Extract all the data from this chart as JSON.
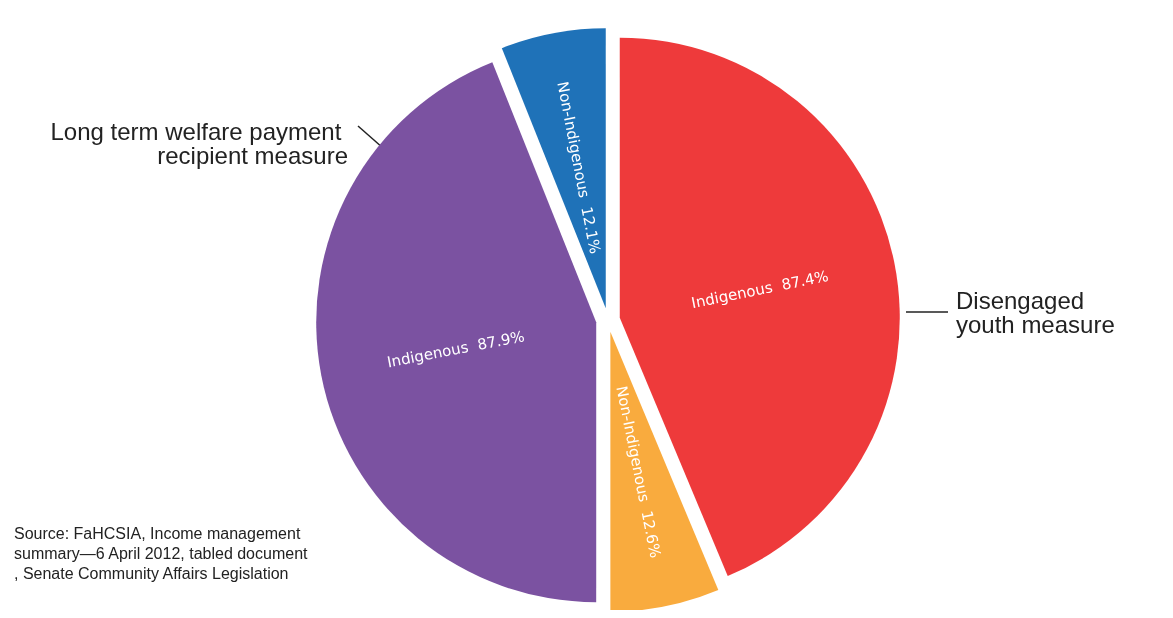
{
  "chart_data": {
    "type": "pie",
    "categories": [
      "Indigenous",
      "Non-Indigenous",
      "Indigenous",
      "Non-Indigenous"
    ],
    "values": [
      87.4,
      12.6,
      87.9,
      12.1
    ],
    "colors": [
      "#ee3a3b",
      "#f9ab3e",
      "#7b52a1",
      "#1f72b8"
    ],
    "value_labels": [
      "87.4%",
      "12.6%",
      "87.9%",
      "12.1%"
    ],
    "annotations": [
      "Disengaged youth measure",
      "Long term welfare payment recipient measure",
      "Source: FaHCSIA, Income management summary—6 April 2012, tabled document, Senate Community Affairs Legislation"
    ]
  }
}
